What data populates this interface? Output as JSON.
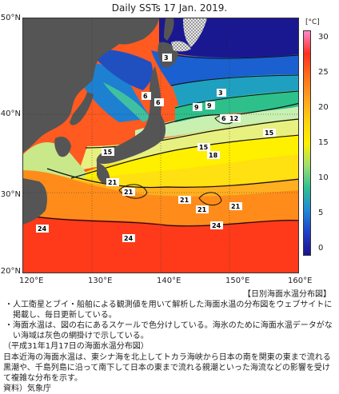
{
  "title": "Daily SSTs 17 Jan. 2019.",
  "map": {
    "lat_labels": [
      "50°N",
      "40°N",
      "30°N",
      "20°N"
    ],
    "lon_labels": [
      "120°E",
      "130°E",
      "140°E",
      "150°E",
      "160°E"
    ],
    "contour_labels": [
      "3",
      "3",
      "6",
      "6",
      "9",
      "9",
      "6",
      "12",
      "15",
      "15",
      "15",
      "18",
      "21",
      "21",
      "21",
      "21",
      "21",
      "24",
      "24",
      "24"
    ]
  },
  "colorbar": {
    "unit": "[°C]",
    "ticks": [
      "30",
      "25",
      "20",
      "15",
      "10",
      "5",
      "0"
    ],
    "colors": [
      "#ff88cc",
      "#ff3020",
      "#ff6f1a",
      "#ffa020",
      "#ffd010",
      "#fff000",
      "#9ee070",
      "#2fc090",
      "#1f88d8",
      "#2040c8",
      "#1a1490"
    ]
  },
  "caption": "【日別海面水温分布図】",
  "notes": [
    "・人工衛星とブイ・船舶による観測値を用いて解析した海面水温の分布図をウェブサイトに掲載し、毎日更新している。",
    "・海面水温は、図の右にあるスケールで色分けしている。海氷のために海面水温データがない海域は灰色の網掛けで示している。"
  ],
  "sub_title": "（平成31年1月17日の海面水温分布図）",
  "description": "日本近海の海面水温は、東シナ海を北上してトカラ海峡から日本の南を関東の東まで流れる黒潮や、千島列島に沿って南下して日本の東まで流れる親潮といった海流などの影響を受けて複雑な分布を示す。",
  "source": "資料）気象庁"
}
